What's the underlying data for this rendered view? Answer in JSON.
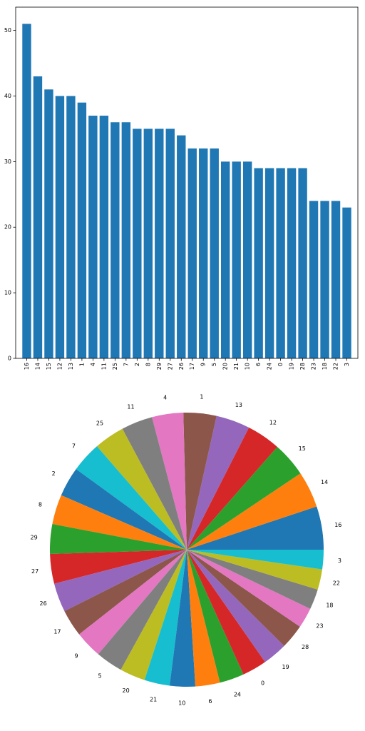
{
  "chart_data": [
    {
      "type": "bar",
      "color": "#1f77b4",
      "categories": [
        "16",
        "14",
        "15",
        "12",
        "13",
        "1",
        "4",
        "11",
        "25",
        "7",
        "2",
        "8",
        "29",
        "27",
        "26",
        "17",
        "9",
        "5",
        "20",
        "21",
        "10",
        "6",
        "24",
        "0",
        "19",
        "28",
        "23",
        "18",
        "22",
        "3"
      ],
      "values": [
        51,
        43,
        41,
        40,
        40,
        39,
        37,
        37,
        36,
        36,
        35,
        35,
        35,
        35,
        34,
        32,
        32,
        32,
        30,
        30,
        30,
        29,
        29,
        29,
        29,
        29,
        24,
        24,
        24,
        23
      ],
      "ylim": [
        0,
        53.55
      ],
      "yticks": [
        0,
        10,
        20,
        30,
        40,
        50
      ]
    },
    {
      "type": "pie",
      "labels": [
        "16",
        "14",
        "15",
        "12",
        "13",
        "1",
        "4",
        "11",
        "25",
        "7",
        "2",
        "8",
        "29",
        "27",
        "26",
        "17",
        "9",
        "5",
        "20",
        "21",
        "10",
        "6",
        "24",
        "0",
        "19",
        "28",
        "23",
        "18",
        "22",
        "3"
      ],
      "values": [
        51,
        43,
        41,
        40,
        40,
        39,
        37,
        37,
        36,
        36,
        35,
        35,
        35,
        35,
        34,
        32,
        32,
        32,
        30,
        30,
        30,
        29,
        29,
        29,
        29,
        29,
        24,
        24,
        24,
        23
      ],
      "colors": [
        "#1f77b4",
        "#ff7f0e",
        "#2ca02c",
        "#d62728",
        "#9467bd",
        "#8c564b",
        "#e377c2",
        "#7f7f7f",
        "#bcbd22",
        "#17becf"
      ]
    }
  ]
}
